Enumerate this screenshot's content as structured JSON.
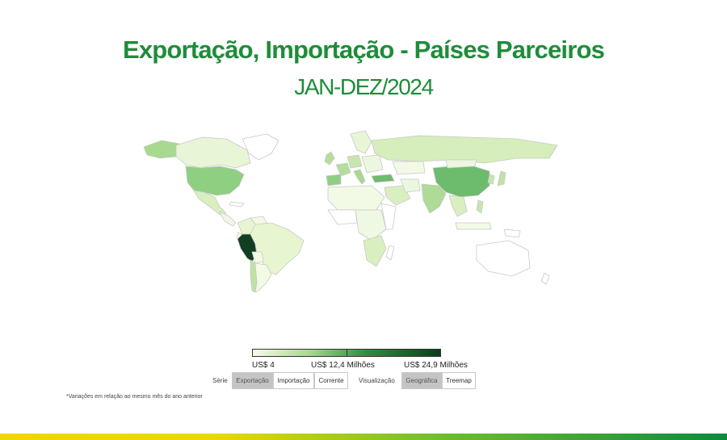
{
  "title": "Exportação, Importação - Países Parceiros",
  "subtitle": "JAN-DEZ/2024",
  "map": {
    "scale_colors": [
      "#f7fcea",
      "#2f8f3e",
      "#0b3d1c"
    ],
    "highlight_country": "Peru",
    "country_colors": {
      "Peru": "#123f21",
      "United States": "#8fcf82",
      "China": "#6dbb6c",
      "Canada": "#a7d98e",
      "Russia": "#d5eebb",
      "Brazil": "#e7f5d0",
      "India": "#aedb95",
      "Chile": "#bfe3a4",
      "Mexico": "#d9efc0",
      "Europe": "#b5de9c",
      "Australia": "#ffffff"
    }
  },
  "legend": {
    "min_label": "US$ 4",
    "mid_label": "US$ 12,4 Milhões",
    "max_label": "US$ 24,9 Milhões"
  },
  "controls": {
    "serie_label": "Série",
    "serie_options": [
      "Exportação",
      "Importação",
      "Corrente"
    ],
    "serie_selected": "Exportação",
    "view_label": "Visualização",
    "view_options": [
      "Geográfica",
      "Treemap"
    ],
    "view_selected": "Geográfica"
  },
  "footnote": "*Variações em relação ao mesmo mês do ano anterior"
}
